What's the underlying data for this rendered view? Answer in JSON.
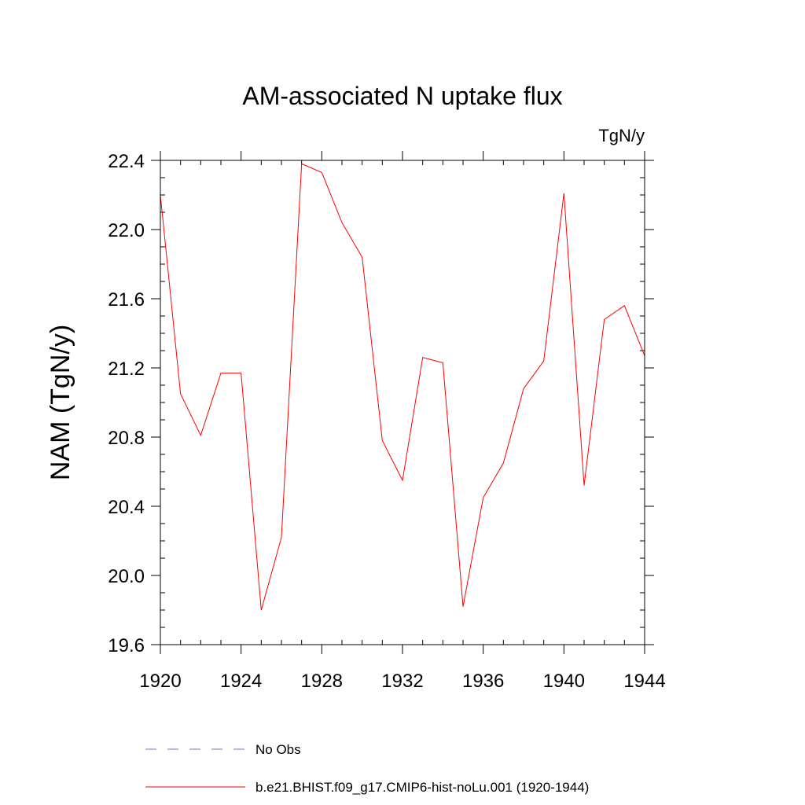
{
  "chart_data": {
    "type": "line",
    "title": "AM-associated N uptake flux",
    "units_label": "TgN/y",
    "xlabel": "",
    "ylabel": "NAM  (TgN/y)",
    "xlim": [
      1920,
      1944
    ],
    "ylim": [
      19.6,
      22.4
    ],
    "x_ticks": [
      "1920",
      "1924",
      "1928",
      "1932",
      "1936",
      "1940",
      "1944"
    ],
    "y_ticks": [
      "19.6",
      "20.0",
      "20.4",
      "20.8",
      "21.2",
      "21.6",
      "22.0",
      "22.4"
    ],
    "grid": false,
    "legend_position": "bottom",
    "series": [
      {
        "name": "No Obs",
        "color": "#7b6fc8",
        "dash": "dashed",
        "x": [],
        "values": []
      },
      {
        "name": "b.e21.BHIST.f09_g17.CMIP6-hist-noLu.001 (1920-1944)",
        "color": "#ff0000",
        "dash": "solid",
        "x": [
          1920,
          1921,
          1922,
          1923,
          1924,
          1925,
          1926,
          1927,
          1928,
          1929,
          1930,
          1931,
          1932,
          1933,
          1934,
          1935,
          1936,
          1937,
          1938,
          1939,
          1940,
          1941,
          1942,
          1943,
          1944
        ],
        "values": [
          22.2,
          21.05,
          20.81,
          21.17,
          21.17,
          19.8,
          20.22,
          22.38,
          22.33,
          22.04,
          21.84,
          20.78,
          20.55,
          21.26,
          21.23,
          19.82,
          20.45,
          20.65,
          21.08,
          21.24,
          22.21,
          20.52,
          21.48,
          21.56,
          21.27
        ]
      }
    ]
  }
}
